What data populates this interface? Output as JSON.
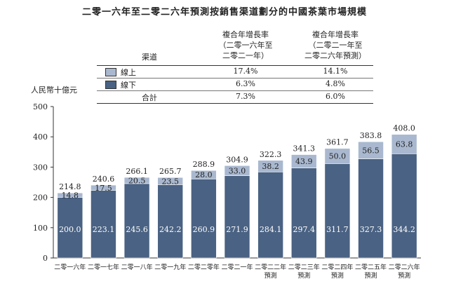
{
  "title": "二零一六年至二零二六年預測按銷售渠道劃分的中國茶葉市場規模",
  "table": {
    "channel_header": "渠道",
    "col1_header": [
      "複合年增長率",
      "（二零一六年至",
      "二零二一年）"
    ],
    "col2_header": [
      "複合年增長率",
      "（二零二一年至",
      "二零二六年預測）"
    ],
    "rows": [
      {
        "label": "線上",
        "c1": "17.4%",
        "c2": "14.1%"
      },
      {
        "label": "線下",
        "c1": "6.3%",
        "c2": "4.8%"
      },
      {
        "label": "合計",
        "c1": "7.3%",
        "c2": "6.0%"
      }
    ]
  },
  "colors": {
    "online": "#a9b8cf",
    "offline": "#4a6283"
  },
  "chart_data": {
    "type": "bar",
    "stacked": true,
    "ylabel": "人民幣十億元",
    "ylim": [
      0,
      500
    ],
    "yticks": [
      0,
      100,
      200,
      300,
      400,
      500
    ],
    "categories": [
      [
        "二零一六年"
      ],
      [
        "二零一七年"
      ],
      [
        "二零一八年"
      ],
      [
        "二零一九年"
      ],
      [
        "二零二零年"
      ],
      [
        "二零二一年"
      ],
      [
        "二零二二年",
        "預測"
      ],
      [
        "二零二三年",
        "預測"
      ],
      [
        "二零二四年",
        "預測"
      ],
      [
        "二零二五年",
        "預測"
      ],
      [
        "二零二六年",
        "預測"
      ]
    ],
    "series": [
      {
        "name": "線下",
        "values": [
          200.0,
          223.1,
          245.6,
          242.2,
          260.9,
          271.9,
          284.1,
          297.4,
          311.7,
          327.3,
          344.2
        ]
      },
      {
        "name": "線上",
        "values": [
          14.8,
          17.5,
          20.5,
          23.5,
          28.0,
          33.0,
          38.2,
          43.9,
          50.0,
          56.5,
          63.8
        ]
      }
    ],
    "totals": [
      214.8,
      240.6,
      266.1,
      265.7,
      288.9,
      304.9,
      322.3,
      341.3,
      361.7,
      383.8,
      408.0
    ]
  }
}
